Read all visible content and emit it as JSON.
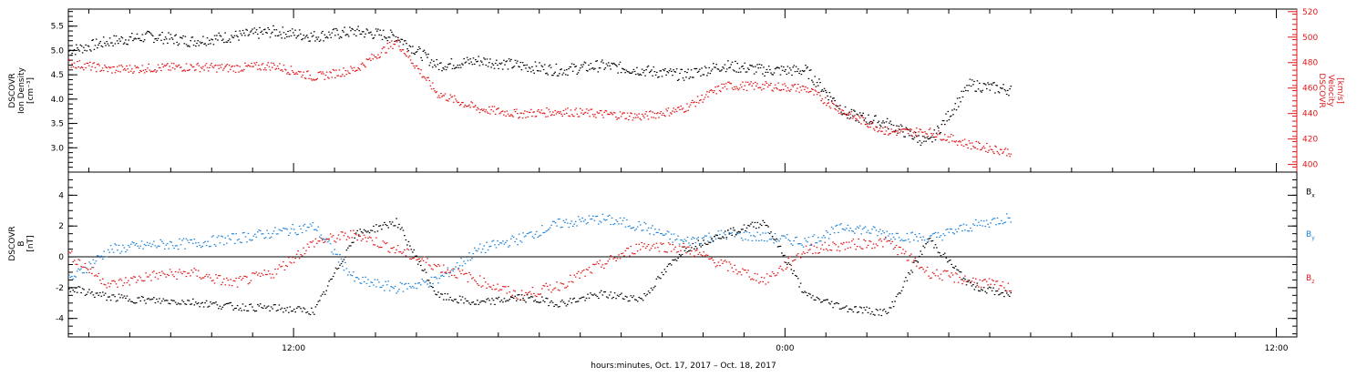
{
  "xlabel": "hours:minutes, Oct. 17, 2017 – Oct. 18, 2017",
  "x_ticks": [
    {
      "hour": 12,
      "label": "12:00"
    },
    {
      "hour": 24,
      "label": "0:00"
    },
    {
      "hour": 36,
      "label": "12:00"
    }
  ],
  "colors": {
    "black": "#000000",
    "red": "#e0181b",
    "blue": "#1f82d6",
    "axis": "#000000"
  },
  "chart_data": [
    {
      "type": "scatter",
      "panel": "plasma",
      "x_unit": "hours since 2017-10-17 00:00",
      "xlim": [
        6.5,
        36.5
      ],
      "ylabel_left": [
        "DSCOVR",
        "Ion Density",
        "[cm⁻³]"
      ],
      "ylabel_right": [
        "DSCOVR",
        "Velocity",
        "[km/s]"
      ],
      "ylim_left": [
        2.5,
        5.85
      ],
      "ylim_right": [
        394,
        522
      ],
      "yticks_left": [
        "3.0",
        "3.5",
        "4.0",
        "4.5",
        "5.0",
        "5.5"
      ],
      "yticks_left_values": [
        3.0,
        3.5,
        4.0,
        4.5,
        5.0,
        5.5
      ],
      "yticks_right": [
        "400",
        "420",
        "440",
        "460",
        "480",
        "500",
        "520"
      ],
      "yticks_right_values": [
        400,
        420,
        440,
        460,
        480,
        500,
        520
      ],
      "series": [
        {
          "axis": "left",
          "color": "black",
          "x": [
            6.5,
            7.5,
            8.5,
            9.5,
            10.5,
            11.5,
            12.5,
            13.5,
            14.5,
            15.5,
            16.5,
            17.5,
            18.5,
            19.5,
            20.5,
            21.5,
            22.5,
            23.5,
            24.5,
            25.5,
            26.5,
            27.5,
            28.5,
            29.5
          ],
          "values": [
            5.0,
            5.2,
            5.3,
            5.2,
            5.3,
            5.4,
            5.3,
            5.4,
            5.3,
            4.7,
            4.8,
            4.7,
            4.6,
            4.7,
            4.6,
            4.5,
            4.7,
            4.6,
            4.6,
            3.7,
            3.5,
            3.1,
            4.3,
            4.2
          ]
        },
        {
          "axis": "right",
          "color": "red",
          "x": [
            6.5,
            7.5,
            8.5,
            9.5,
            10.5,
            11.5,
            12.5,
            13.5,
            14.5,
            15.5,
            16.5,
            17.5,
            18.5,
            19.5,
            20.5,
            21.5,
            22.5,
            23.5,
            24.5,
            25.5,
            26.5,
            27.5,
            28.5,
            29.5
          ],
          "values": [
            480,
            475,
            476,
            477,
            476,
            478,
            469,
            475,
            497,
            456,
            444,
            440,
            442,
            440,
            438,
            444,
            462,
            462,
            460,
            440,
            426,
            426,
            416,
            410
          ]
        }
      ]
    },
    {
      "type": "scatter",
      "panel": "magnetic",
      "x_unit": "hours since 2017-10-17 00:00",
      "xlim": [
        6.5,
        36.5
      ],
      "ylabel_left": [
        "DSCOVR",
        "B",
        "[nT]"
      ],
      "ylim": [
        -5.2,
        5.5
      ],
      "yticks": [
        "-4",
        "-2",
        "0",
        "2",
        "4"
      ],
      "ytick_values": [
        -4,
        -2,
        0,
        2,
        4
      ],
      "legend_position": "right",
      "series": [
        {
          "name": "Bx",
          "color": "black",
          "x": [
            6.5,
            7.5,
            8.5,
            9.5,
            10.5,
            11.5,
            12.5,
            13.5,
            14.5,
            15.5,
            16.5,
            17.5,
            18.5,
            19.5,
            20.5,
            21.5,
            22.5,
            23.5,
            24.5,
            25.5,
            26.5,
            27.5,
            28.5,
            29.5
          ],
          "values": [
            -2.0,
            -2.6,
            -2.8,
            -2.9,
            -3.2,
            -3.3,
            -3.5,
            1.5,
            2.3,
            -2.5,
            -3.0,
            -2.6,
            -3.0,
            -2.4,
            -2.7,
            0.5,
            1.5,
            2.3,
            -2.5,
            -3.3,
            -3.6,
            1.2,
            -1.8,
            -2.5
          ]
        },
        {
          "name": "By",
          "color": "blue",
          "x": [
            6.5,
            7.5,
            8.5,
            9.5,
            10.5,
            11.5,
            12.5,
            13.5,
            14.5,
            15.5,
            16.5,
            17.5,
            18.5,
            19.5,
            20.5,
            21.5,
            22.5,
            23.5,
            24.5,
            25.5,
            26.5,
            27.5,
            28.5,
            29.5
          ],
          "values": [
            -1.5,
            0.5,
            0.8,
            0.9,
            1.2,
            1.6,
            2.0,
            -1.5,
            -2.0,
            -1.5,
            0.5,
            1.2,
            2.2,
            2.5,
            2.0,
            1.0,
            1.5,
            1.3,
            1.0,
            2.0,
            1.5,
            1.2,
            2.0,
            2.6
          ]
        },
        {
          "name": "Bz",
          "color": "red",
          "x": [
            6.5,
            7.5,
            8.5,
            9.5,
            10.5,
            11.5,
            12.5,
            13.5,
            14.5,
            15.5,
            16.5,
            17.5,
            18.5,
            19.5,
            20.5,
            21.5,
            22.5,
            23.5,
            24.5,
            25.5,
            26.5,
            27.5,
            28.5,
            29.5
          ],
          "values": [
            0.2,
            -1.8,
            -1.2,
            -1.0,
            -1.7,
            -1.0,
            1.0,
            1.5,
            0.5,
            -0.6,
            -1.5,
            -2.5,
            -1.8,
            -0.5,
            0.8,
            0.6,
            -0.5,
            -1.5,
            0.5,
            0.8,
            1.0,
            -1.0,
            -1.5,
            -2.0
          ]
        }
      ],
      "legend": [
        {
          "label": "B",
          "sub": "x",
          "color": "black",
          "y_value": 4.3
        },
        {
          "label": "B",
          "sub": "y",
          "color": "blue",
          "y_value": 1.55
        },
        {
          "label": "B",
          "sub": "z",
          "color": "red",
          "y_value": -1.3
        }
      ]
    }
  ]
}
